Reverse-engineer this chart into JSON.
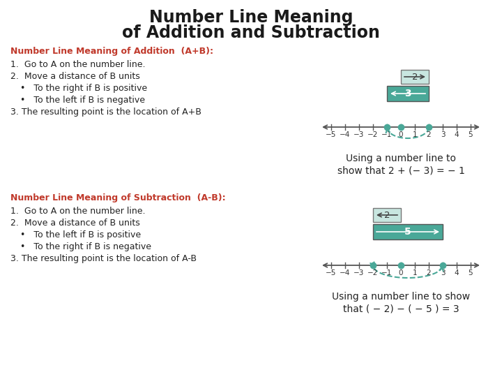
{
  "title_line1": "Number Line Meaning",
  "title_line2": "of Addition and Subtraction",
  "title_color": "#1a1a1a",
  "title_fontsize": 17,
  "bg_color": "#ffffff",
  "teal": "#4aa898",
  "teal_light": "#c8e6e0",
  "text_color_red": "#c0392b",
  "text_color_black": "#222222",
  "addition_header": "Number Line Meaning of Addition  (A+B):",
  "addition_steps": [
    "1.  Go to A on the number line.",
    "2.  Move a distance of B units",
    "•   To the right if B is positive",
    "•   To the left if B is negative",
    "3. The resulting point is the location of A+B"
  ],
  "subtraction_header": "Number Line Meaning of Subtraction  (A-B):",
  "subtraction_steps": [
    "1.  Go to A on the number line.",
    "2.  Move a distance of B units",
    "•   To the left if B is positive",
    "•   To the right if B is negative",
    "3. The resulting point is the location of A-B"
  ],
  "addition_caption_line1": "Using a number line to",
  "addition_caption_line2": "show that 2 + (− 3) = − 1",
  "subtraction_caption_line1": "Using a number line to show",
  "subtraction_caption_line2": "that ( − 2) − ( − 5 ) = 3"
}
